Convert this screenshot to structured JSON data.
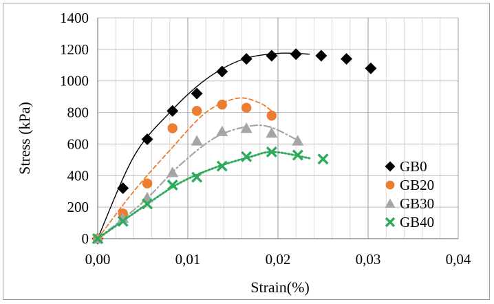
{
  "chart_data": {
    "type": "scatter",
    "xlabel": "Strain(%)",
    "ylabel": "Stress  (kPa)",
    "xlim": [
      0,
      0.04
    ],
    "ylim": [
      0,
      1400
    ],
    "xticks": [
      "0,00",
      "0,01",
      "0,02",
      "0,03",
      "0,04"
    ],
    "xtick_values": [
      0,
      0.01,
      0.02,
      0.03,
      0.04
    ],
    "yticks": [
      "0",
      "200",
      "400",
      "600",
      "800",
      "1000",
      "1200",
      "1400"
    ],
    "ytick_values": [
      0,
      200,
      400,
      600,
      800,
      1000,
      1200,
      1400
    ],
    "grid": true,
    "legend_position": "bottom-right",
    "series": [
      {
        "name": "GB0",
        "marker": "diamond",
        "color": "#000000",
        "line_style": "solid",
        "x": [
          0,
          0.0028,
          0.0055,
          0.0083,
          0.011,
          0.0138,
          0.0165,
          0.0193,
          0.022,
          0.0248,
          0.0276,
          0.0303
        ],
        "y": [
          0,
          320,
          630,
          810,
          920,
          1060,
          1140,
          1160,
          1170,
          1160,
          1140,
          1080
        ]
      },
      {
        "name": "GB20",
        "marker": "circle",
        "color": "#ed7d31",
        "line_style": "dashed",
        "x": [
          0,
          0.0028,
          0.0055,
          0.0083,
          0.011,
          0.0138,
          0.0165,
          0.0193
        ],
        "y": [
          0,
          160,
          350,
          700,
          810,
          850,
          830,
          780
        ]
      },
      {
        "name": "GB30",
        "marker": "triangle",
        "color": "#a5a5a5",
        "line_style": "dashdot",
        "x": [
          0,
          0.0028,
          0.0055,
          0.0083,
          0.011,
          0.0138,
          0.0165,
          0.0193,
          0.0222
        ],
        "y": [
          0,
          130,
          260,
          420,
          620,
          680,
          700,
          670,
          620
        ]
      },
      {
        "name": "GB40",
        "marker": "x",
        "color": "#2eaa5c",
        "line_style": "dotted",
        "x": [
          0,
          0.0028,
          0.0055,
          0.0083,
          0.011,
          0.0138,
          0.0165,
          0.0193,
          0.0222,
          0.025
        ],
        "y": [
          0,
          110,
          220,
          340,
          390,
          460,
          520,
          550,
          530,
          505
        ]
      }
    ],
    "trend_lines": [
      {
        "series": "GB0",
        "x": [
          0,
          0.004,
          0.008,
          0.012,
          0.016,
          0.02,
          0.0235
        ],
        "y": [
          0,
          520,
          800,
          1010,
          1135,
          1175,
          1170
        ]
      },
      {
        "series": "GB20",
        "x": [
          0,
          0.004,
          0.008,
          0.012,
          0.0155,
          0.018,
          0.0195
        ],
        "y": [
          0,
          300,
          560,
          800,
          890,
          860,
          800
        ]
      },
      {
        "series": "GB30",
        "x": [
          0,
          0.005,
          0.009,
          0.013,
          0.0165,
          0.019,
          0.022
        ],
        "y": [
          0,
          230,
          460,
          640,
          710,
          710,
          630
        ]
      },
      {
        "series": "GB40",
        "x": [
          0,
          0.005,
          0.009,
          0.013,
          0.017,
          0.0195,
          0.0235
        ],
        "y": [
          0,
          200,
          350,
          450,
          520,
          550,
          510
        ]
      }
    ]
  }
}
